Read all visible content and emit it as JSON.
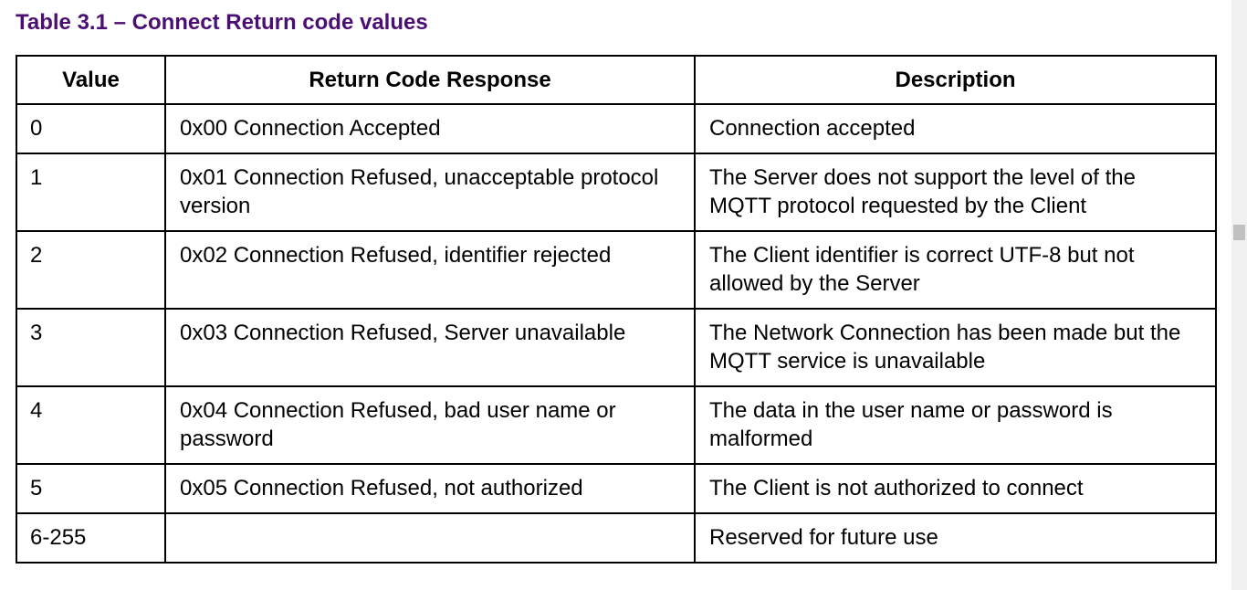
{
  "title": "Table 3.1 – Connect Return code values",
  "table": {
    "headers": [
      "Value",
      "Return Code Response",
      "Description"
    ],
    "rows": [
      [
        "0",
        "0x00 Connection Accepted",
        "Connection accepted"
      ],
      [
        "1",
        "0x01 Connection Refused, unacceptable protocol version",
        "The Server does not support the level of the MQTT protocol requested by the Client"
      ],
      [
        "2",
        "0x02 Connection Refused, identifier rejected",
        "The Client identifier is correct UTF-8 but not allowed by the Server"
      ],
      [
        "3",
        "0x03 Connection Refused, Server unavailable",
        "The Network Connection has been made but the MQTT service is unavailable"
      ],
      [
        "4",
        "0x04 Connection Refused, bad user name or password",
        "The data in the user name or password is malformed"
      ],
      [
        "5",
        "0x05 Connection Refused, not authorized",
        "The Client is not authorized to connect"
      ],
      [
        "6-255",
        "",
        "Reserved for future use"
      ]
    ]
  },
  "colors": {
    "title": "#4b0f73",
    "border": "#000000"
  }
}
